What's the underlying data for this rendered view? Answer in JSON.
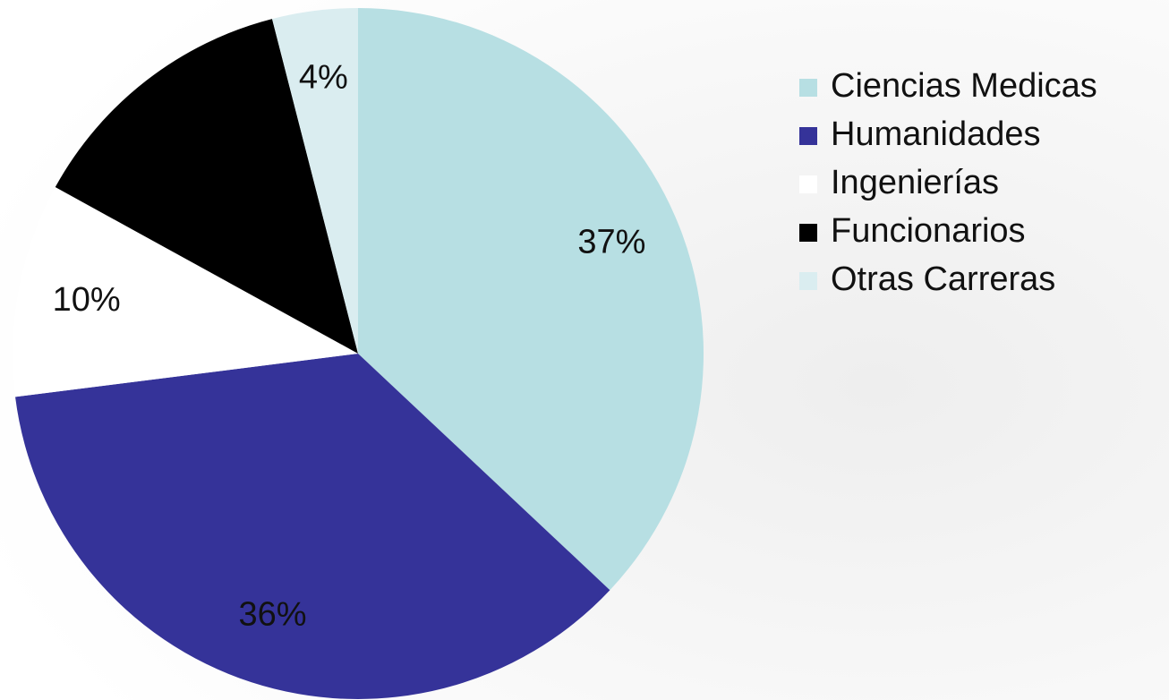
{
  "chart_data": {
    "type": "pie",
    "categories": [
      "Ciencias Medicas",
      "Humanidades",
      "Ingenierías",
      "Funcionarios",
      "Otras Carreras"
    ],
    "values": [
      37,
      36,
      10,
      13,
      4
    ],
    "value_labels": [
      "37%",
      "36%",
      "10%",
      null,
      "4%"
    ],
    "colors": [
      "#b7dfe3",
      "#353399",
      "#ffffff",
      "#000000",
      "#daedf0"
    ],
    "legend": "right"
  }
}
